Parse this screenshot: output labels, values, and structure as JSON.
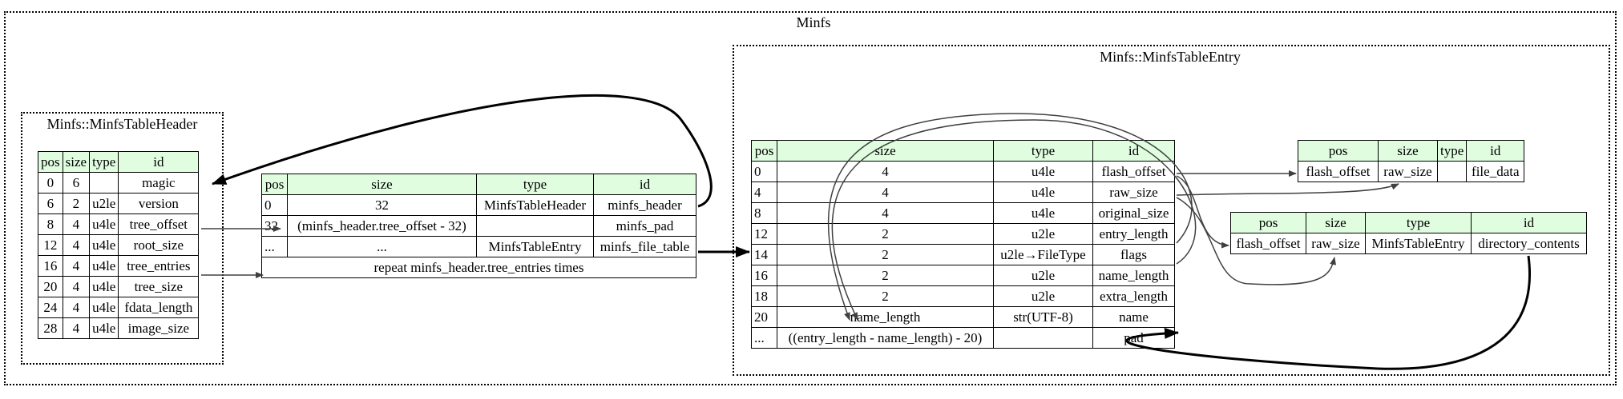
{
  "clusters": {
    "outer": "Minfs",
    "header": "Minfs::MinfsTableHeader",
    "entry": "Minfs::MinfsTableEntry"
  },
  "header_table": {
    "columns": [
      "pos",
      "size",
      "type",
      "id"
    ],
    "rows": [
      [
        "0",
        "6",
        "",
        "magic"
      ],
      [
        "6",
        "2",
        "u2le",
        "version"
      ],
      [
        "8",
        "4",
        "u4le",
        "tree_offset"
      ],
      [
        "12",
        "4",
        "u4le",
        "root_size"
      ],
      [
        "16",
        "4",
        "u4le",
        "tree_entries"
      ],
      [
        "20",
        "4",
        "u4le",
        "tree_size"
      ],
      [
        "24",
        "4",
        "u4le",
        "fdata_length"
      ],
      [
        "28",
        "4",
        "u4le",
        "image_size"
      ]
    ]
  },
  "main_table": {
    "columns": [
      "pos",
      "size",
      "type",
      "id"
    ],
    "rows": [
      [
        "0",
        "32",
        "MinfsTableHeader",
        "minfs_header"
      ],
      [
        "32",
        "(minfs_header.tree_offset - 32)",
        "",
        "minfs_pad"
      ],
      [
        "...",
        "...",
        "MinfsTableEntry",
        "minfs_file_table"
      ]
    ],
    "repeat_note": "repeat minfs_header.tree_entries times"
  },
  "entry_table": {
    "columns": [
      "pos",
      "size",
      "type",
      "id"
    ],
    "rows": [
      [
        "0",
        "4",
        "u4le",
        "flash_offset"
      ],
      [
        "4",
        "4",
        "u4le",
        "raw_size"
      ],
      [
        "8",
        "4",
        "u4le",
        "original_size"
      ],
      [
        "12",
        "2",
        "u2le",
        "entry_length"
      ],
      [
        "14",
        "2",
        "u2le→FileType",
        "flags"
      ],
      [
        "16",
        "2",
        "u2le",
        "name_length"
      ],
      [
        "18",
        "2",
        "u2le",
        "extra_length"
      ],
      [
        "20",
        "name_length",
        "str(UTF-8)",
        "name"
      ],
      [
        "...",
        "((entry_length - name_length) - 20)",
        "",
        "pad"
      ]
    ]
  },
  "file_data_table": {
    "columns": [
      "pos",
      "size",
      "type",
      "id"
    ],
    "row": [
      "flash_offset",
      "raw_size",
      "",
      "file_data"
    ]
  },
  "dir_table": {
    "columns": [
      "pos",
      "size",
      "type",
      "id"
    ],
    "row": [
      "flash_offset",
      "raw_size",
      "MinfsTableEntry",
      "directory_contents"
    ]
  },
  "colors": {
    "header_fill": "#e0fde0",
    "border": "#000000",
    "edge_thin": "#404040",
    "edge_thick": "#000000"
  }
}
